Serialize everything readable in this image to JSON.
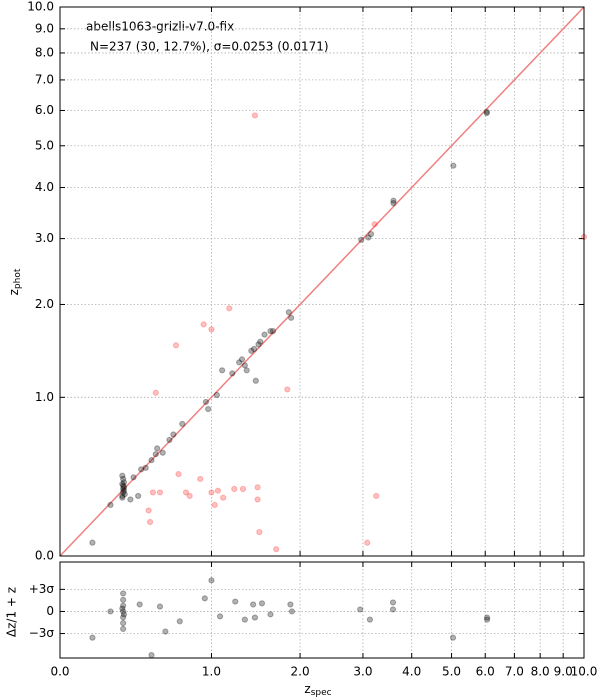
{
  "chart_data": [
    {
      "type": "scatter",
      "title": "abells1063-grizli-v7.0-fix",
      "subtitle": "N=237 (30, 12.7%), σ=0.0253 (0.0171)",
      "ylabel": "z",
      "ylabel_sub": "phot",
      "scale": "log1p",
      "grid": true,
      "alpha": 0.3,
      "one_to_one_color": "#f08080",
      "xlim": [
        0,
        10
      ],
      "ylim": [
        0,
        10
      ],
      "xticks": [
        0,
        1,
        2,
        3,
        4,
        5,
        6,
        7,
        8,
        9,
        10
      ],
      "yticks": [
        {
          "value": 0,
          "label": "0.0"
        },
        {
          "value": 1,
          "label": "1.0"
        },
        {
          "value": 2,
          "label": "2.0"
        },
        {
          "value": 3,
          "label": "3.0"
        },
        {
          "value": 4,
          "label": "4.0"
        },
        {
          "value": 5,
          "label": "5.0"
        },
        {
          "value": 6,
          "label": "6.0"
        },
        {
          "value": 7,
          "label": "7.0"
        },
        {
          "value": 8,
          "label": "8.0"
        },
        {
          "value": 9,
          "label": "9.0"
        },
        {
          "value": 10,
          "label": "10.0"
        }
      ],
      "series": [
        {
          "color": "#000000",
          "x": [
            0.16,
            0.26,
            0.33,
            0.335,
            0.335,
            0.34,
            0.33,
            0.34,
            0.335,
            0.33,
            0.34,
            0.335,
            0.345,
            0.33,
            0.38,
            0.4,
            0.43,
            0.45,
            0.48,
            0.52,
            0.55,
            0.56,
            0.6,
            0.65,
            0.68,
            0.75,
            0.95,
            0.97,
            1.05,
            1.1,
            1.2,
            1.27,
            1.3,
            1.33,
            1.35,
            1.4,
            1.43,
            1.45,
            1.48,
            1.5,
            1.55,
            1.62,
            1.65,
            1.85,
            1.88,
            2.97,
            3.1,
            3.15,
            3.6,
            3.6,
            5.05,
            6.05,
            6.05
          ],
          "values": [
            0.06,
            0.25,
            0.3,
            0.32,
            0.34,
            0.35,
            0.37,
            0.38,
            0.4,
            0.29,
            0.33,
            0.36,
            0.31,
            0.42,
            0.28,
            0.41,
            0.3,
            0.46,
            0.47,
            0.52,
            0.56,
            0.6,
            0.57,
            0.66,
            0.7,
            0.78,
            0.96,
            0.9,
            1.02,
            1.25,
            1.22,
            1.33,
            1.36,
            1.3,
            1.25,
            1.45,
            1.47,
            1.15,
            1.52,
            1.55,
            1.63,
            1.67,
            1.67,
            1.9,
            1.83,
            2.98,
            3.02,
            3.08,
            3.67,
            3.72,
            4.5,
            5.92,
            5.96
          ]
        },
        {
          "color": "#ff3030",
          "x": [
            0.53,
            0.5,
            0.51,
            0.58,
            0.72,
            0.55,
            0.7,
            0.78,
            0.81,
            0.9,
            0.93,
            1.0,
            1.0,
            1.06,
            1.03,
            1.11,
            1.17,
            1.22,
            1.31,
            1.44,
            1.47,
            1.47,
            1.49,
            1.69,
            1.83,
            3.08,
            3.22,
            3.25,
            10
          ],
          "values": [
            0.32,
            0.22,
            0.16,
            0.32,
            0.43,
            1.04,
            1.51,
            0.32,
            0.3,
            0.4,
            1.75,
            1.69,
            0.32,
            0.33,
            0.25,
            0.29,
            1.95,
            0.34,
            0.34,
            5.85,
            0.35,
            0.28,
            0.11,
            0.03,
            1.07,
            0.06,
            3.26,
            0.3,
            3.03
          ]
        }
      ]
    },
    {
      "type": "scatter",
      "xlabel": "z",
      "xlabel_sub": "spec",
      "ylabel": "Δz/1 + z",
      "scale": "log1p",
      "grid": true,
      "alpha": 0.3,
      "color": "#000000",
      "xlim": [
        0,
        10
      ],
      "ylim": [
        -0.16,
        0.17
      ],
      "xticks": [
        {
          "value": 0,
          "label": "0.0"
        },
        {
          "value": 1,
          "label": "1.0"
        },
        {
          "value": 2,
          "label": "2.0"
        },
        {
          "value": 3,
          "label": "3.0"
        },
        {
          "value": 4,
          "label": "4.0"
        },
        {
          "value": 5,
          "label": "5.0"
        },
        {
          "value": 6,
          "label": "6.0"
        },
        {
          "value": 7,
          "label": "7.0"
        },
        {
          "value": 8,
          "label": "8.0"
        },
        {
          "value": 9,
          "label": "9.0"
        },
        {
          "value": 10,
          "label": "10.0"
        }
      ],
      "yticks": [
        {
          "value": 0.0759,
          "label": "+3σ"
        },
        0,
        {
          "value": -0.0759,
          "label": "−3σ"
        }
      ],
      "x": [
        0.16,
        0.26,
        0.335,
        0.335,
        0.335,
        0.335,
        0.335,
        0.335,
        0.335,
        0.33,
        0.34,
        0.52,
        0.44,
        0.58,
        0.62,
        0.73,
        0.94,
        1.0,
        1.08,
        1.23,
        1.33,
        1.42,
        1.44,
        1.52,
        1.62,
        1.87,
        1.89,
        2.95,
        3.13,
        3.59,
        3.59,
        5.04,
        6.06,
        6.06
      ],
      "values": [
        -0.09,
        0.0,
        0.062,
        0.04,
        0.02,
        0.0,
        -0.02,
        -0.04,
        -0.06,
        0.01,
        -0.01,
        -0.15,
        0.024,
        0.017,
        -0.069,
        -0.034,
        0.045,
        0.107,
        -0.017,
        0.034,
        -0.028,
        0.024,
        -0.021,
        0.028,
        -0.01,
        0.024,
        0.0,
        0.007,
        -0.028,
        0.031,
        0.007,
        -0.09,
        -0.028,
        -0.021
      ]
    }
  ]
}
